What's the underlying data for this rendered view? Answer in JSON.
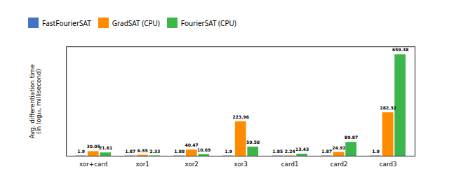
{
  "chart_data": {
    "type": "bar",
    "categories": [
      "xor+card",
      "xor1",
      "xor2",
      "xor3",
      "card1",
      "card2",
      "card3"
    ],
    "series": [
      {
        "name": "FastFourierSAT",
        "color": "#4472C4",
        "values": [
          1.9,
          1.87,
          1.88,
          1.9,
          1.85,
          1.87,
          1.9
        ]
      },
      {
        "name": "GradSAT (CPU)",
        "color": "#FF8C00",
        "values": [
          30.05,
          6.55,
          40.47,
          223.96,
          2.24,
          24.92,
          282.32
        ]
      },
      {
        "name": "FourierSAT (CPU)",
        "color": "#3CB54A",
        "values": [
          21.61,
          2.33,
          10.69,
          59.58,
          13.43,
          89.87,
          659.38
        ]
      }
    ],
    "ylabel": "Avg. differentiation time\n(in log₁₀, millisecond)",
    "ylim": [
      0,
      710
    ],
    "yticks": [],
    "tick_labels": "x",
    "data_labels": true,
    "legend": "upper left",
    "grid": false
  }
}
